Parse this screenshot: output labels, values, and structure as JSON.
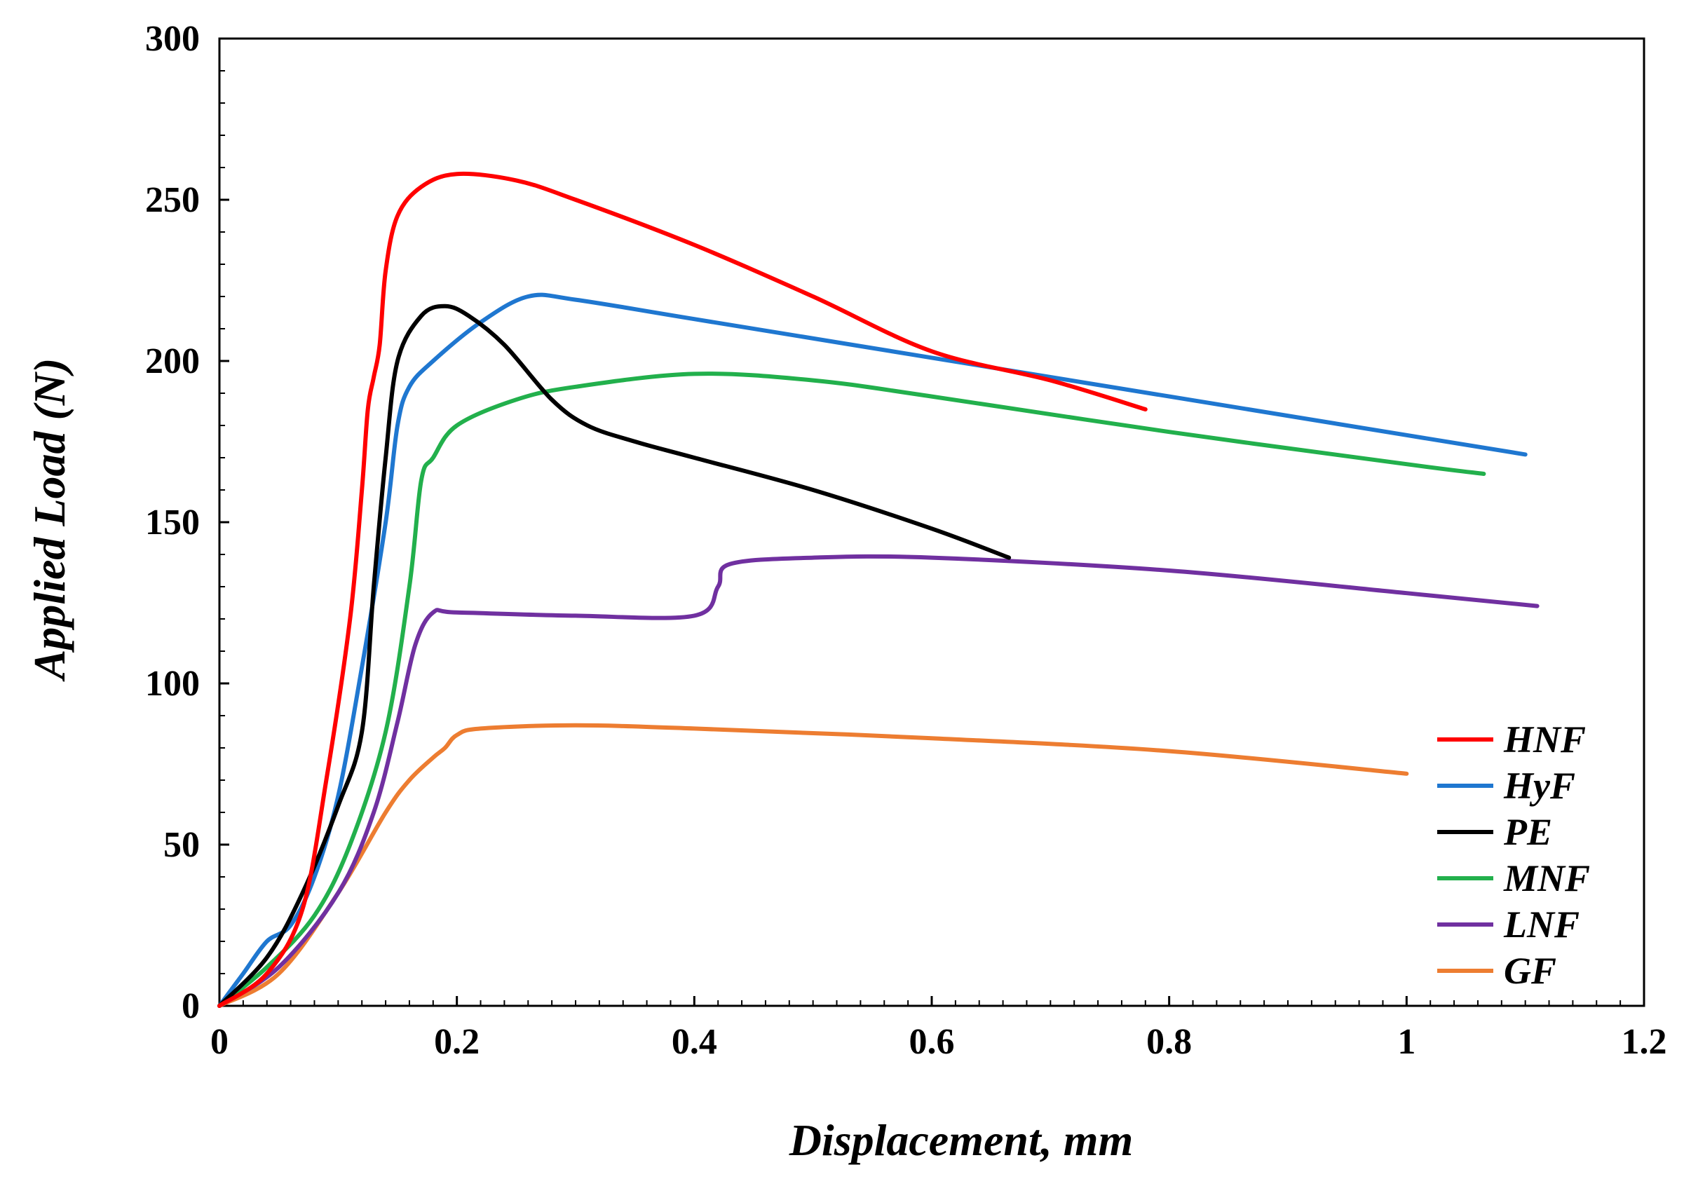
{
  "chart_data": {
    "type": "line",
    "title": "",
    "xlabel": "Displacement, mm",
    "ylabel": "Applied Load (N)",
    "xlim": [
      0,
      1.2
    ],
    "ylim": [
      0,
      300
    ],
    "xticks": [
      0,
      0.2,
      0.4,
      0.6,
      0.8,
      1.0,
      1.2
    ],
    "xtick_labels": [
      "0",
      "0.2",
      "0.4",
      "0.6",
      "0.8",
      "1",
      "1.2"
    ],
    "yticks": [
      0,
      50,
      100,
      150,
      200,
      250,
      300
    ],
    "ytick_labels": [
      "0",
      "50",
      "100",
      "150",
      "200",
      "250",
      "300"
    ],
    "grid": false,
    "legend_position": "bottom-right",
    "series": [
      {
        "name": "HNF",
        "color": "#ff0000",
        "x": [
          0,
          0.04,
          0.07,
          0.09,
          0.11,
          0.12,
          0.125,
          0.13,
          0.135,
          0.14,
          0.15,
          0.17,
          0.2,
          0.25,
          0.3,
          0.4,
          0.5,
          0.6,
          0.7,
          0.78
        ],
        "y": [
          0,
          10,
          30,
          70,
          120,
          160,
          185,
          195,
          205,
          228,
          245,
          254,
          258,
          256,
          250,
          236,
          220,
          203,
          194,
          185
        ]
      },
      {
        "name": "HyF",
        "color": "#1f77d0",
        "x": [
          0,
          0.02,
          0.04,
          0.06,
          0.08,
          0.1,
          0.12,
          0.14,
          0.15,
          0.16,
          0.18,
          0.22,
          0.26,
          0.3,
          0.4,
          0.6,
          0.8,
          1.0,
          1.1
        ],
        "y": [
          0,
          10,
          20,
          25,
          40,
          65,
          105,
          150,
          180,
          192,
          200,
          212,
          220,
          219,
          213,
          201,
          189,
          177,
          171
        ]
      },
      {
        "name": "PE",
        "color": "#000000",
        "x": [
          0,
          0.04,
          0.07,
          0.1,
          0.12,
          0.13,
          0.14,
          0.15,
          0.17,
          0.19,
          0.21,
          0.24,
          0.28,
          0.31,
          0.35,
          0.4,
          0.5,
          0.6,
          0.665
        ],
        "y": [
          0,
          15,
          35,
          62,
          85,
          130,
          170,
          200,
          214,
          217,
          214,
          205,
          188,
          180,
          175,
          170,
          160,
          148,
          139
        ]
      },
      {
        "name": "MNF",
        "color": "#22b04c",
        "x": [
          0,
          0.04,
          0.08,
          0.11,
          0.14,
          0.16,
          0.17,
          0.18,
          0.2,
          0.25,
          0.3,
          0.4,
          0.5,
          0.6,
          0.8,
          1.0,
          1.065
        ],
        "y": [
          0,
          12,
          28,
          50,
          85,
          130,
          163,
          170,
          180,
          188,
          192,
          196,
          194,
          189,
          178,
          168,
          165
        ]
      },
      {
        "name": "LNF",
        "color": "#7030a0",
        "x": [
          0,
          0.05,
          0.1,
          0.13,
          0.15,
          0.165,
          0.18,
          0.2,
          0.3,
          0.4,
          0.42,
          0.43,
          0.5,
          0.6,
          0.8,
          1.0,
          1.11
        ],
        "y": [
          0,
          12,
          35,
          60,
          88,
          112,
          122,
          122,
          121,
          121,
          130,
          137,
          139,
          139,
          135,
          128,
          124
        ]
      },
      {
        "name": "GF",
        "color": "#ed7d31",
        "x": [
          0,
          0.05,
          0.1,
          0.14,
          0.16,
          0.18,
          0.19,
          0.2,
          0.22,
          0.3,
          0.4,
          0.6,
          0.8,
          1.0
        ],
        "y": [
          0,
          10,
          35,
          60,
          70,
          77,
          80,
          84,
          86,
          87,
          86,
          83,
          79,
          72
        ]
      }
    ]
  }
}
